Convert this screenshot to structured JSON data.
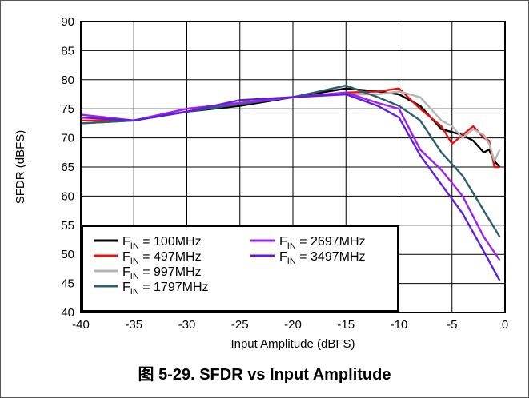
{
  "figure_caption": {
    "figure_word": "图",
    "text": "5-29. SFDR vs Input Amplitude"
  },
  "chart_data": {
    "type": "line",
    "title": "",
    "xlabel": "Input Amplitude (dBFS)",
    "ylabel": "SFDR (dBFS)",
    "xlim": [
      -40,
      0
    ],
    "ylim": [
      40,
      90
    ],
    "xticks": [
      -40,
      -35,
      -30,
      -25,
      -20,
      -15,
      -10,
      -5,
      0
    ],
    "xtick_labels": [
      "-40",
      "-35",
      "-30",
      "-25",
      "-20",
      "-15",
      "-10",
      "-5",
      "0"
    ],
    "yticks": [
      40,
      45,
      50,
      55,
      60,
      65,
      70,
      75,
      80,
      85,
      90
    ],
    "ytick_labels": [
      "40",
      "45",
      "50",
      "55",
      "60",
      "65",
      "70",
      "75",
      "80",
      "85",
      "90"
    ],
    "grid": true,
    "legend_position": "bottom-left",
    "series": [
      {
        "name": "F<sub>IN</sub> = 100MHz",
        "legend_main": "F",
        "legend_sub": "IN",
        "legend_rest": " = 100MHz",
        "color": "#000000",
        "points": [
          [
            -40,
            72.5
          ],
          [
            -35,
            73
          ],
          [
            -30,
            74.5
          ],
          [
            -25,
            75.5
          ],
          [
            -20,
            77
          ],
          [
            -15,
            78.5
          ],
          [
            -12,
            78
          ],
          [
            -10,
            77.5
          ],
          [
            -8,
            75.5
          ],
          [
            -6,
            71.5
          ],
          [
            -5,
            71
          ],
          [
            -4,
            70.5
          ],
          [
            -3,
            69.5
          ],
          [
            -2,
            67.5
          ],
          [
            -1.5,
            68
          ],
          [
            -1,
            66
          ],
          [
            -0.5,
            65
          ]
        ]
      },
      {
        "name": "F<sub>IN</sub> = 497MHz",
        "legend_main": "F",
        "legend_sub": "IN",
        "legend_rest": " = 497MHz",
        "color": "#e8120c",
        "points": [
          [
            -40,
            73
          ],
          [
            -35,
            73
          ],
          [
            -30,
            75
          ],
          [
            -25,
            76
          ],
          [
            -20,
            77
          ],
          [
            -15,
            77.8
          ],
          [
            -12,
            78
          ],
          [
            -10,
            78.5
          ],
          [
            -8,
            75
          ],
          [
            -6,
            72
          ],
          [
            -5,
            69
          ],
          [
            -4,
            70.5
          ],
          [
            -3,
            72
          ],
          [
            -2,
            70
          ],
          [
            -1.5,
            69.5
          ],
          [
            -1,
            65
          ],
          [
            -0.5,
            65
          ]
        ]
      },
      {
        "name": "F<sub>IN</sub> = 997MHz",
        "legend_main": "F",
        "legend_sub": "IN",
        "legend_rest": " = 997MHz",
        "color": "#b4b4b4",
        "points": [
          [
            -40,
            72.5
          ],
          [
            -35,
            73
          ],
          [
            -30,
            75
          ],
          [
            -25,
            76
          ],
          [
            -20,
            77
          ],
          [
            -15,
            77.5
          ],
          [
            -12,
            77.5
          ],
          [
            -10,
            78
          ],
          [
            -8,
            77
          ],
          [
            -6,
            73
          ],
          [
            -5,
            72
          ],
          [
            -4,
            70
          ],
          [
            -3,
            71.5
          ],
          [
            -2,
            70.5
          ],
          [
            -1.5,
            69
          ],
          [
            -1,
            66
          ],
          [
            -0.5,
            68
          ]
        ]
      },
      {
        "name": "F<sub>IN</sub> = 1797MHz",
        "legend_main": "F",
        "legend_sub": "IN",
        "legend_rest": " = 1797MHz",
        "color": "#2c5f70",
        "points": [
          [
            -40,
            72.5
          ],
          [
            -35,
            73
          ],
          [
            -30,
            74.5
          ],
          [
            -25,
            75.8
          ],
          [
            -20,
            77
          ],
          [
            -15,
            79
          ],
          [
            -12,
            77
          ],
          [
            -10,
            75.5
          ],
          [
            -8,
            73
          ],
          [
            -6,
            67.5
          ],
          [
            -4,
            63.5
          ],
          [
            -2,
            57.5
          ],
          [
            -0.5,
            53
          ]
        ]
      },
      {
        "name": "F<sub>IN</sub> = 2697MHz",
        "legend_main": "F",
        "legend_sub": "IN",
        "legend_rest": " = 2697MHz",
        "color": "#a020f0",
        "points": [
          [
            -40,
            74
          ],
          [
            -35,
            73
          ],
          [
            -30,
            75
          ],
          [
            -25,
            76
          ],
          [
            -20,
            77
          ],
          [
            -15,
            77.8
          ],
          [
            -12,
            76
          ],
          [
            -10,
            75
          ],
          [
            -8,
            68
          ],
          [
            -6,
            64.5
          ],
          [
            -4,
            60
          ],
          [
            -2,
            53
          ],
          [
            -0.5,
            49
          ]
        ]
      },
      {
        "name": "F<sub>IN</sub> = 3497MHz",
        "legend_main": "F",
        "legend_sub": "IN",
        "legend_rest": " = 3497MHz",
        "color": "#5d1ee0",
        "points": [
          [
            -40,
            73.5
          ],
          [
            -35,
            73
          ],
          [
            -30,
            74.5
          ],
          [
            -25,
            76.5
          ],
          [
            -20,
            77
          ],
          [
            -15,
            77.5
          ],
          [
            -12,
            75.5
          ],
          [
            -10,
            73.5
          ],
          [
            -8,
            67
          ],
          [
            -6,
            62
          ],
          [
            -4,
            57
          ],
          [
            -2,
            50.5
          ],
          [
            -0.5,
            45.5
          ]
        ]
      }
    ]
  }
}
